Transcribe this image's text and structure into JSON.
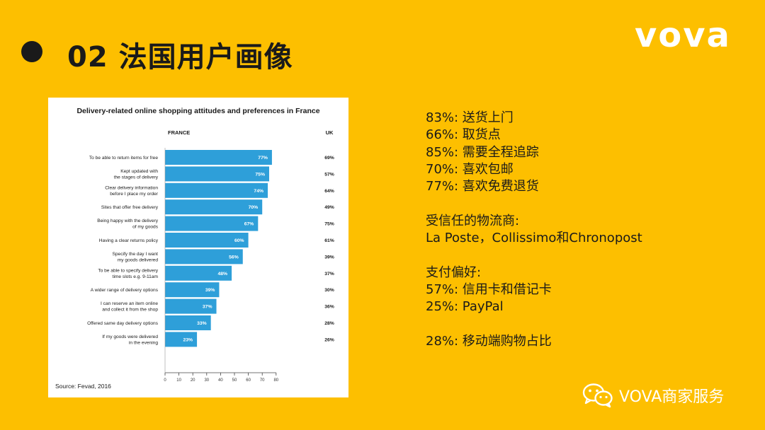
{
  "slide": {
    "title": "02  法国用户画像",
    "logo": "vova",
    "colors": {
      "background": "#FDBF00",
      "bar": "#2E9FD9",
      "text": "#1a1a1a"
    }
  },
  "chart_data": {
    "type": "bar",
    "orientation": "horizontal",
    "title": "Delivery-related online shopping attitudes and preferences in France",
    "column_labels": {
      "bars": "FRANCE",
      "side_values": "UK"
    },
    "categories": [
      "To be able to return items for free",
      "Kept updated with\nthe stages of delivery",
      "Clear delivery information\nbefore I place my order",
      "Sites that offer free delivery",
      "Being happy with the delivery\nof my goods",
      "Having a clear returns policy",
      "Specify the day I want\nmy goods delivered",
      "To be able to specify delivery\ntime slots e.g. 9-11am",
      "A wider range of delivery options",
      "I can reserve an item online\nand collect it from the shop",
      "Offered same day delivery options",
      "If my goods were delivered\nin the evening"
    ],
    "series": [
      {
        "name": "FRANCE",
        "values": [
          77,
          75,
          74,
          70,
          67,
          60,
          56,
          48,
          39,
          37,
          33,
          23
        ]
      },
      {
        "name": "UK",
        "values": [
          69,
          57,
          64,
          49,
          75,
          61,
          39,
          37,
          30,
          36,
          28,
          26
        ]
      }
    ],
    "value_format": "{v}%",
    "xlim": [
      0,
      80
    ],
    "xticks": [
      0,
      10,
      20,
      30,
      40,
      50,
      60,
      70,
      80
    ],
    "grid": false,
    "source": "Source: Fevad, 2016"
  },
  "stats": {
    "items": [
      "83%: 送货上门",
      "66%: 取货点",
      "85%: 需要全程追踪",
      "70%: 喜欢包邮",
      "77%: 喜欢免费退货",
      "",
      "受信任的物流商:",
      "La Poste，Collissimo和Chronopost",
      "",
      "支付偏好:",
      "57%: 信用卡和借记卡",
      "25%: PayPal",
      "",
      "28%: 移动端购物占比"
    ]
  },
  "footer": {
    "brand": "VOVA商家服务",
    "icon": "wechat-icon"
  }
}
